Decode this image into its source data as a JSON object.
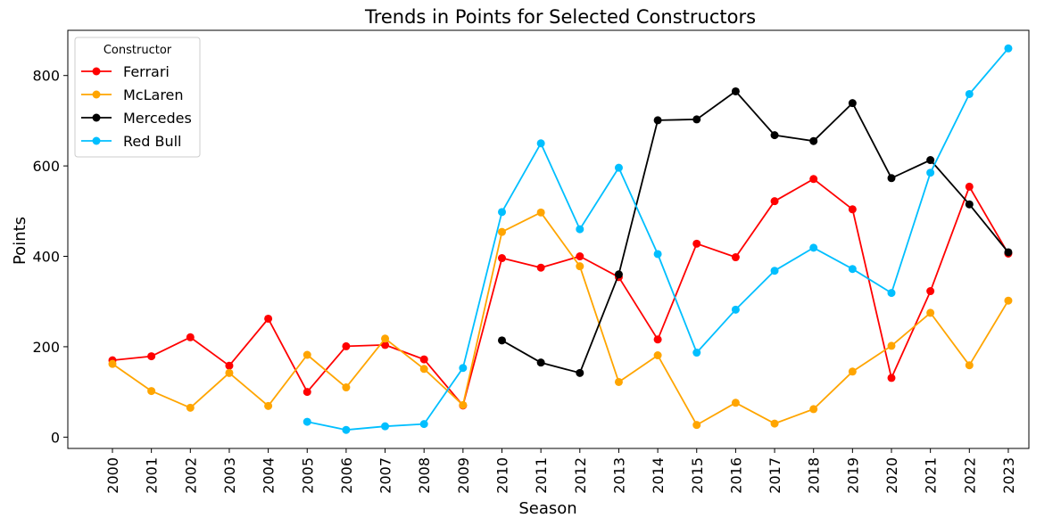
{
  "chart_data": {
    "type": "line",
    "title": "Trends in Points for Selected Constructors",
    "xlabel": "Season",
    "ylabel": "Points",
    "ylim": [
      -25,
      900
    ],
    "yticks": [
      0,
      200,
      400,
      600,
      800
    ],
    "grid": false,
    "legend": {
      "title": "Constructor",
      "placement": "top-left"
    },
    "categories": [
      "2000",
      "2001",
      "2002",
      "2003",
      "2004",
      "2005",
      "2006",
      "2007",
      "2008",
      "2009",
      "2010",
      "2011",
      "2012",
      "2013",
      "2014",
      "2015",
      "2016",
      "2017",
      "2018",
      "2019",
      "2020",
      "2021",
      "2022",
      "2023"
    ],
    "series": [
      {
        "name": "Ferrari",
        "color": "#ff0000",
        "values": [
          170,
          179,
          221,
          158,
          262,
          100,
          201,
          204,
          172,
          70,
          396,
          375,
          400,
          354,
          216,
          428,
          398,
          522,
          571,
          504,
          131,
          323,
          554,
          406
        ]
      },
      {
        "name": "McLaren",
        "color": "#ffa500",
        "values": [
          162,
          102,
          65,
          142,
          69,
          182,
          110,
          218,
          151,
          71,
          454,
          497,
          378,
          122,
          181,
          27,
          76,
          30,
          62,
          145,
          202,
          275,
          159,
          302
        ]
      },
      {
        "name": "Mercedes",
        "color": "#000000",
        "values": [
          null,
          null,
          null,
          null,
          null,
          null,
          null,
          null,
          null,
          null,
          214,
          165,
          142,
          360,
          701,
          703,
          765,
          668,
          655,
          739,
          573,
          613,
          515,
          409
        ]
      },
      {
        "name": "Red Bull",
        "color": "#00bfff",
        "values": [
          null,
          null,
          null,
          null,
          null,
          34,
          16,
          24,
          29,
          153,
          498,
          650,
          460,
          596,
          405,
          187,
          282,
          368,
          419,
          372,
          319,
          585,
          759,
          860
        ]
      }
    ]
  }
}
